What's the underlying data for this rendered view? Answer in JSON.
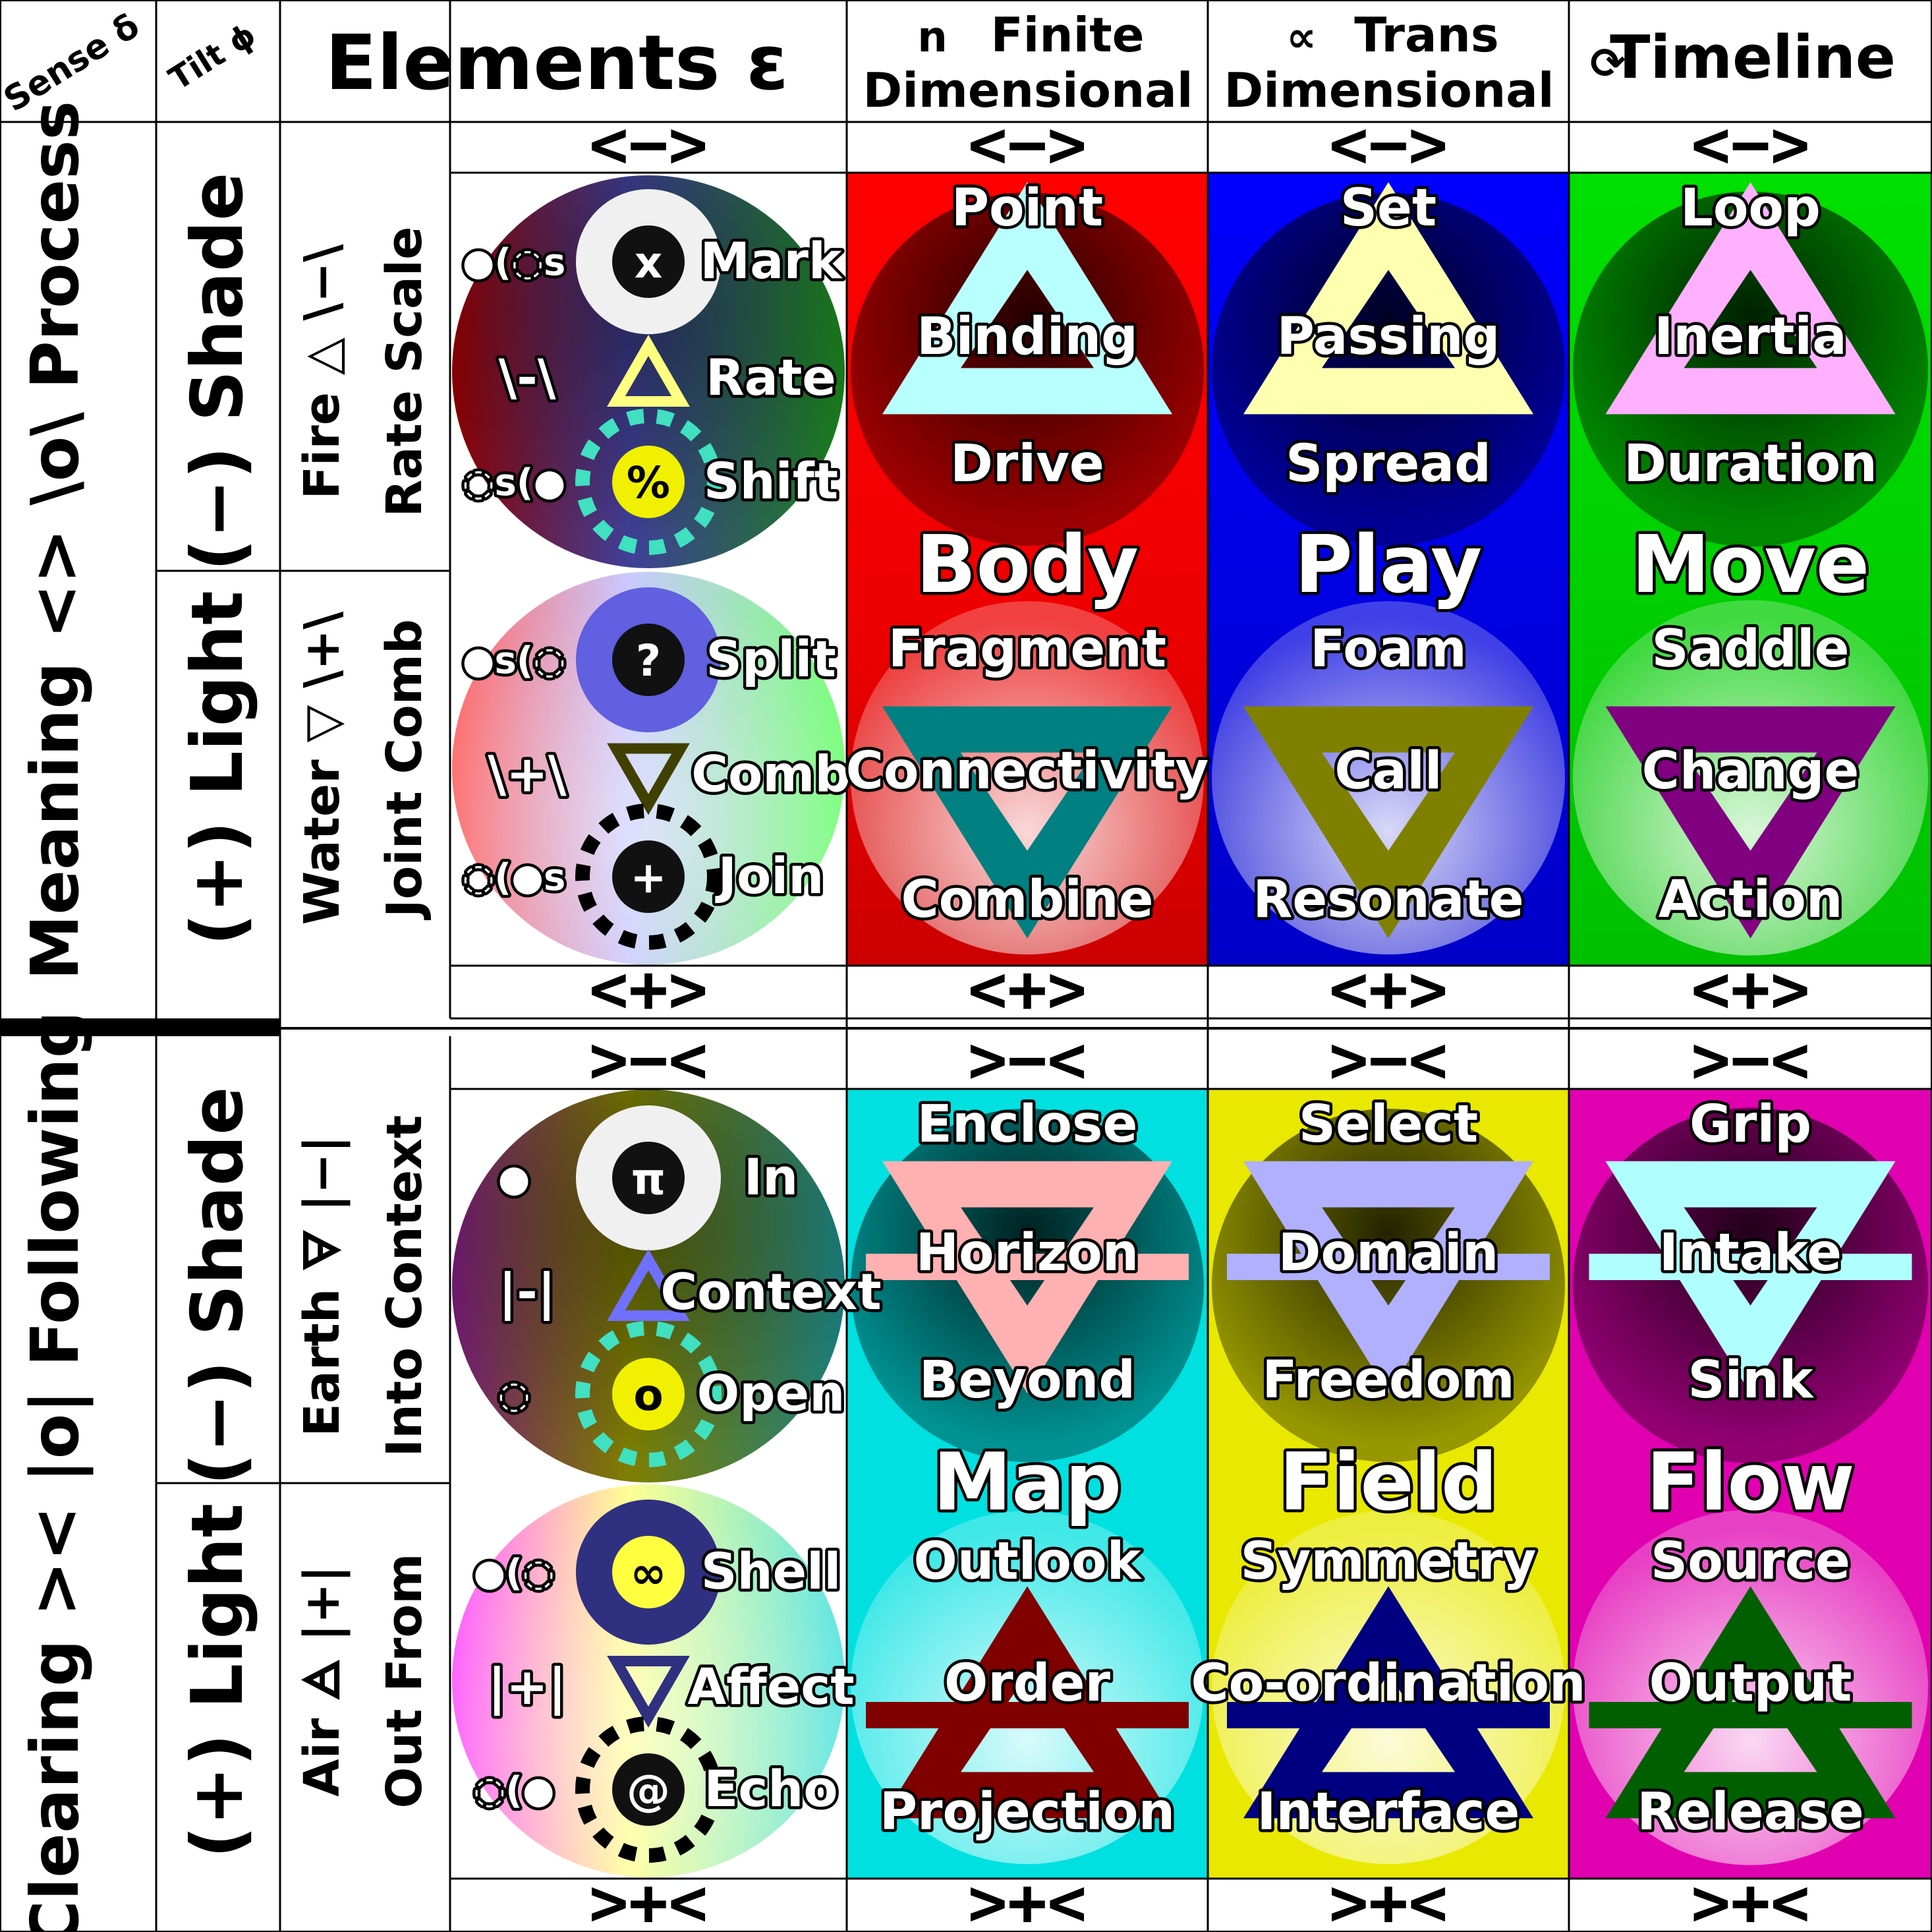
{
  "header": {
    "sense": "Sense δ",
    "tilt": "Tilt ϕ",
    "elements": "Elements ε",
    "finite_symbol": "n",
    "finite_top": "Finite",
    "finite_bottom": "Dimensional",
    "trans_symbol": "∝",
    "trans_top": "Trans",
    "trans_bottom": "Dimensional",
    "timeline_symbol": "⟳",
    "timeline": "Timeline"
  },
  "side": {
    "top": "Meaning <> \\o\\ Process",
    "bottom": "Clearing >< |o| Following"
  },
  "operators": {
    "top_open": "<−>",
    "top_close": "<+>",
    "bottom_open": ">−<",
    "bottom_close": ">+<"
  },
  "columns": [
    {
      "key": "finite",
      "big_top": "Body",
      "big_bottom": "Map"
    },
    {
      "key": "trans",
      "big_top": "Play",
      "big_bottom": "Field"
    },
    {
      "key": "timeline",
      "big_top": "Move",
      "big_bottom": "Flow"
    }
  ],
  "rows": [
    {
      "tilt": "(−) Shade",
      "element_a": "Fire △ \\−\\",
      "element_b": "Rate Scale",
      "side_label": "\\-\\",
      "elem_items": [
        "Mark",
        "Rate",
        "Shift"
      ],
      "elem_symbols": [
        "x",
        "",
        "%"
      ],
      "elem_markers": [
        "●(◌s",
        "",
        "◌s(●"
      ],
      "cells": [
        [
          "Point",
          "Binding",
          "Drive"
        ],
        [
          "Set",
          "Passing",
          "Spread"
        ],
        [
          "Loop",
          "Inertia",
          "Duration"
        ]
      ]
    },
    {
      "tilt": "(+) Light",
      "element_a": "Water ▽ \\+\\",
      "element_b": "Joint Comb",
      "side_label": "\\+\\",
      "elem_items": [
        "Split",
        "Comb",
        "Join"
      ],
      "elem_symbols": [
        "?",
        "",
        "+"
      ],
      "elem_markers": [
        "●s(◌",
        "",
        "◌(●s"
      ],
      "cells": [
        [
          "Fragment",
          "Connectivity",
          "Combine"
        ],
        [
          "Foam",
          "Call",
          "Resonate"
        ],
        [
          "Saddle",
          "Change",
          "Action"
        ]
      ]
    },
    {
      "tilt": "(−) Shade",
      "element_a": "Earth 🜃 |−|",
      "element_b": "Into Context",
      "side_label": "|-|",
      "elem_items": [
        "In",
        "Context",
        "Open"
      ],
      "elem_symbols": [
        "π",
        "",
        "o"
      ],
      "elem_markers": [
        "●",
        "",
        "◌"
      ],
      "cells": [
        [
          "Enclose",
          "Horizon",
          "Beyond"
        ],
        [
          "Select",
          "Domain",
          "Freedom"
        ],
        [
          "Grip",
          "Intake",
          "Sink"
        ]
      ]
    },
    {
      "tilt": "(+) Light",
      "element_a": "Air 🜁 |+|",
      "element_b": "Out From",
      "side_label": "|+|",
      "elem_items": [
        "Shell",
        "Affect",
        "Echo"
      ],
      "elem_symbols": [
        "∞",
        "",
        "@"
      ],
      "elem_markers": [
        "●(◌",
        "",
        "◌(●"
      ],
      "cells": [
        [
          "Outlook",
          "Order",
          "Projection"
        ],
        [
          "Symmetry",
          "Co-ordination",
          "Interface"
        ],
        [
          "Source",
          "Output",
          "Release"
        ]
      ]
    }
  ],
  "colors": {
    "finite_top": "#e00000",
    "trans_top": "#0000e0",
    "timeline_top": "#00cc00",
    "finite_bottom": "#00e0e0",
    "trans_bottom": "#e8e800",
    "timeline_bottom": "#e000b0",
    "tri_finite_top": "#b8ffff",
    "tri_trans_top": "#ffffb0",
    "tri_timeline_top": "#ffb0ff",
    "tri_finite_water": "#008080",
    "tri_trans_water": "#808000",
    "tri_timeline_water": "#800080",
    "tri_finite_earth": "#ffb0b0",
    "tri_trans_earth": "#b0b0ff",
    "tri_timeline_earth": "#b0ffff",
    "tri_finite_air": "#800000",
    "tri_trans_air": "#000080",
    "tri_timeline_air": "#006000"
  }
}
